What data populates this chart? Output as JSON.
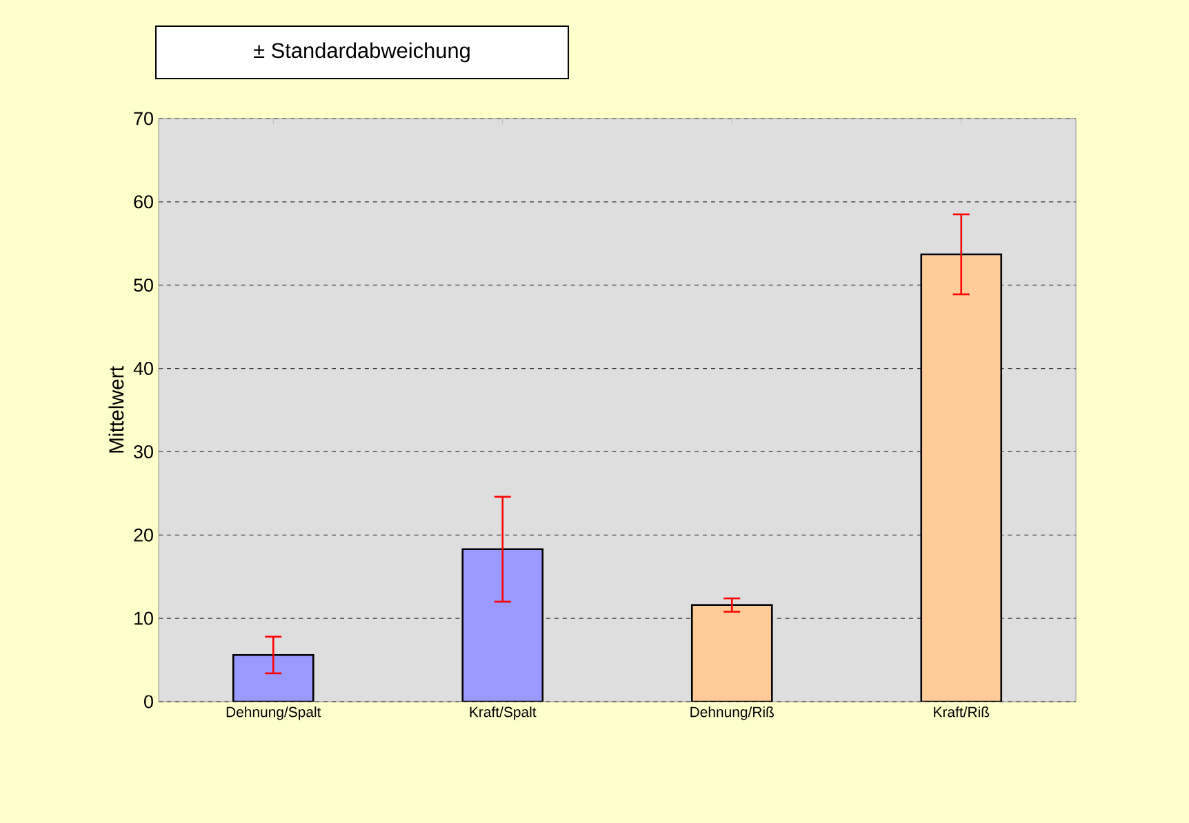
{
  "chart_data": {
    "type": "bar",
    "ylabel": "Mittelwert",
    "categories": [
      "Dehnung/Spalt",
      "Kraft/Spalt",
      "Dehnung/Riß",
      "Kraft/Riß"
    ],
    "values": [
      5.6,
      18.3,
      11.6,
      53.7
    ],
    "errors": [
      2.2,
      6.3,
      0.8,
      4.8
    ],
    "colors": [
      "#9999ff",
      "#9999ff",
      "#ffcc99",
      "#ffcc99"
    ],
    "ylim": [
      0,
      70
    ],
    "yticks": [
      0,
      10,
      20,
      30,
      40,
      50,
      60,
      70
    ],
    "grid": "y",
    "annotations": [
      "± Standardabweichung"
    ]
  }
}
